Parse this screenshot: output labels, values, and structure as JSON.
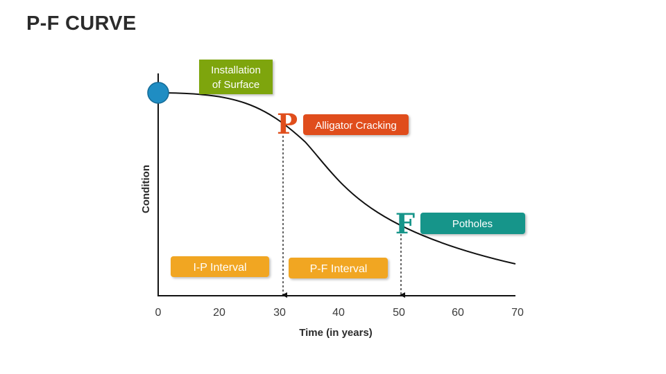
{
  "title": "P-F CURVE",
  "axes": {
    "x_label": "Time (in years)",
    "y_label": "Condition",
    "x_ticks": [
      "0",
      "20",
      "30",
      "40",
      "50",
      "60",
      "70"
    ]
  },
  "labels": {
    "installation_line1": "Installation",
    "installation_line2": "of Surface",
    "p_letter": "P",
    "p_event": "Alligator Cracking",
    "f_letter": "F",
    "f_event": "Potholes",
    "ip_interval": "I-P Interval",
    "pf_interval": "P-F Interval"
  },
  "colors": {
    "installation": "#7ea50f",
    "p_event": "#e04e1c",
    "f_event": "#17958a",
    "interval": "#f1a624",
    "start_dot": "#1f8dc3"
  }
}
